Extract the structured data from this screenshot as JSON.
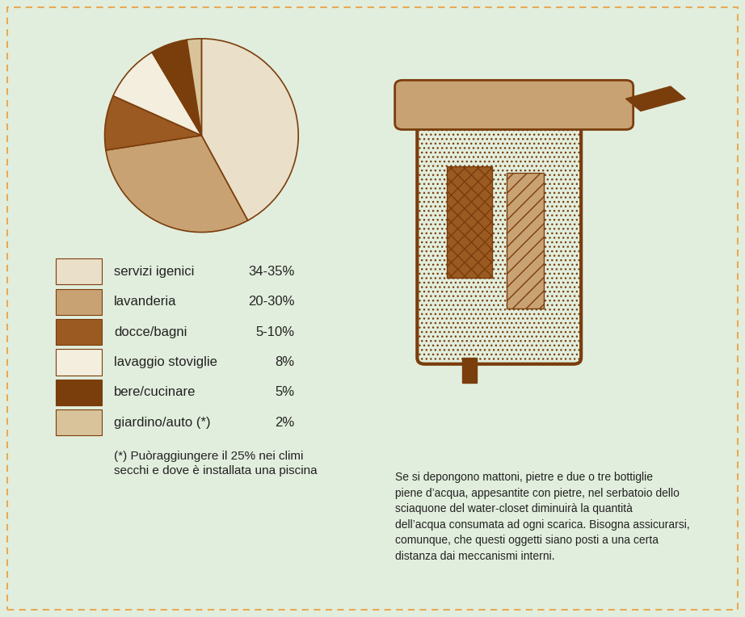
{
  "chart_data": {
    "type": "pie",
    "categories": [
      "servizi igenici",
      "lavanderia",
      "docce/bagni",
      "lavaggio stoviglie",
      "bere/cucinare",
      "giardino/auto (*)"
    ],
    "values": [
      34.5,
      25,
      7.5,
      8,
      5,
      2
    ],
    "value_labels": [
      "34-35%",
      "20-30%",
      "5-10%",
      "8%",
      "5%",
      "2%"
    ],
    "colors": [
      "#eadfc8",
      "#c9a273",
      "#9a5a22",
      "#f3eedd",
      "#7a3d0c",
      "#d9c39a"
    ],
    "annotations": [
      "(*) Puòraggiungere il 25% nei climi\nsecchi e dove è installata una piscina",
      "Se si depongono mattoni, pietre e due o tre bottiglie\npiene d’acqua, appesantite con pietre, nel serbatoio dello\nsciaquone del water-closet diminuirà la quantità\ndell’acqua consumata ad ogni scarica. Bisogna assicurarsi,\ncomunque, che questi oggetti siano posti a una certa\ndistanza dai meccanismi interni."
    ]
  }
}
